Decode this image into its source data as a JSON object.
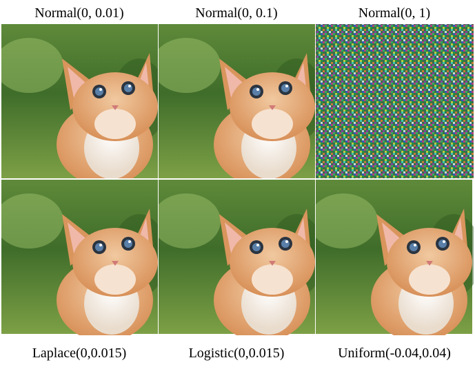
{
  "panels": [
    {
      "label": "Normal(0, 0.01)"
    },
    {
      "label": "Normal(0, 0.1)"
    },
    {
      "label": "Normal(0, 1)"
    },
    {
      "label": "Laplace(0,0.015)"
    },
    {
      "label": "Logistic(0,0.015)"
    },
    {
      "label": "Uniform(-0.04,0.04)"
    }
  ]
}
